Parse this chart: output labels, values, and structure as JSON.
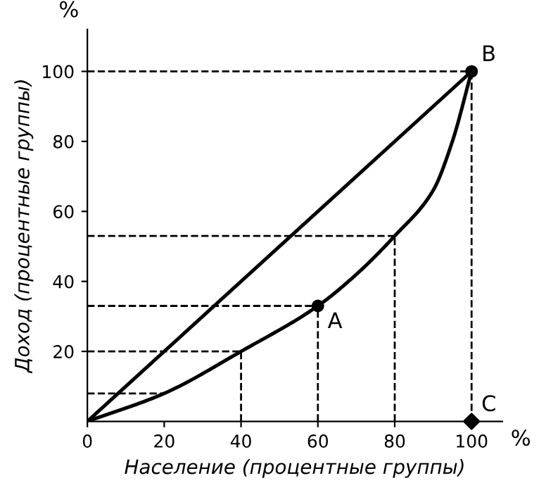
{
  "chart_data": {
    "type": "line",
    "xlabel": "Население (процентные группы)",
    "ylabel": "Доход (процентные группы)",
    "xlim": [
      0,
      108
    ],
    "ylim": [
      0,
      112
    ],
    "xticks": [
      0,
      20,
      40,
      60,
      80,
      100
    ],
    "yticks": [
      20,
      40,
      60,
      80,
      100
    ],
    "grid": false,
    "legend": false,
    "line_style": "solid",
    "marker": "none",
    "series": [
      {
        "type": "line",
        "color": "#000000",
        "x": [
          0,
          100
        ],
        "values": [
          0,
          100
        ]
      },
      {
        "type": "line",
        "color": "#000000",
        "x": [
          0,
          20,
          40,
          60,
          70,
          80,
          90,
          95,
          100
        ],
        "values": [
          0,
          8,
          20,
          33,
          42,
          53,
          66,
          80,
          100
        ]
      },
      {
        "type": "scatter",
        "name": "A",
        "marker": "circle",
        "color": "#000000",
        "x": [
          60
        ],
        "values": [
          33
        ]
      },
      {
        "type": "scatter",
        "name": "B",
        "marker": "circle",
        "color": "#000000",
        "x": [
          100
        ],
        "values": [
          100
        ]
      },
      {
        "type": "scatter",
        "name": "C",
        "marker": "diamond",
        "color": "#000000",
        "x": [
          100
        ],
        "values": [
          0
        ]
      }
    ],
    "ref_lines": [
      {
        "axis": "y",
        "value": 8,
        "line_style": "dashed"
      },
      {
        "axis": "y",
        "value": 20,
        "line_style": "dashed"
      },
      {
        "axis": "y",
        "value": 33,
        "line_style": "dashed"
      },
      {
        "axis": "y",
        "value": 53,
        "line_style": "dashed"
      },
      {
        "axis": "y",
        "value": 100,
        "line_style": "dashed"
      },
      {
        "axis": "x",
        "value": 40,
        "line_style": "dashed"
      },
      {
        "axis": "x",
        "value": 60,
        "line_style": "dashed"
      },
      {
        "axis": "x",
        "value": 80,
        "line_style": "dashed"
      },
      {
        "axis": "x",
        "value": 100,
        "line_style": "dashed"
      }
    ],
    "annotations": [
      "%",
      "%"
    ]
  }
}
